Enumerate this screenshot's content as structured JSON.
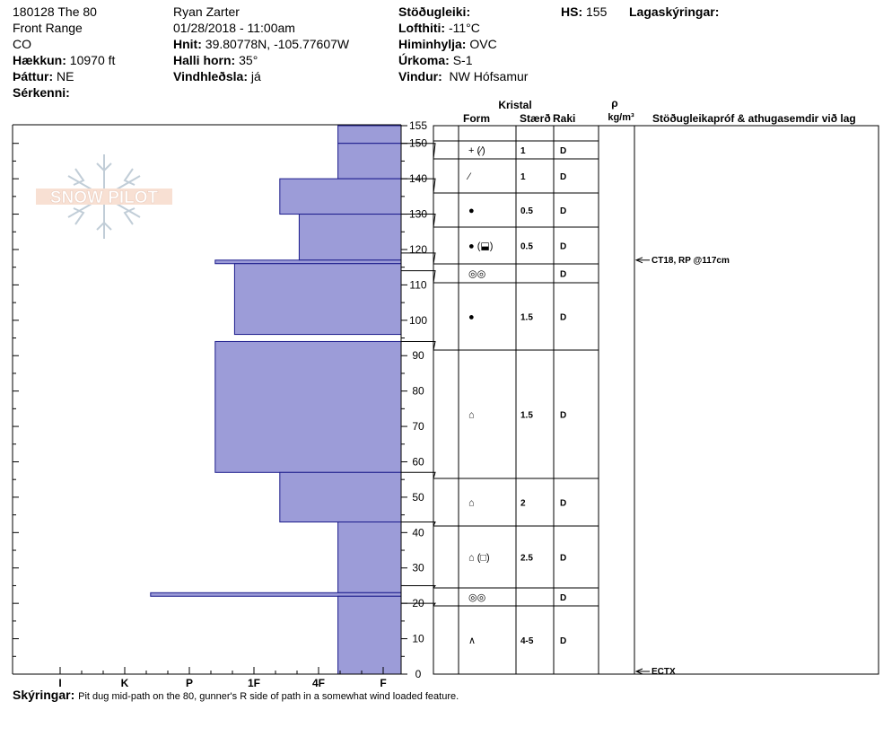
{
  "header": {
    "col1": {
      "site": "180128 The 80",
      "range": "Front Range",
      "state": "CO",
      "elevation_label": "Hækkun:",
      "elevation": "10970 ft",
      "aspect_label": "Þáttur:",
      "aspect": "NE",
      "specifics_label": "Sérkenni:"
    },
    "col2": {
      "observer": "Ryan Zarter",
      "datetime": "01/28/2018 - 11:00am",
      "coords_label": "Hnit:",
      "coords": "39.80778N, -105.77607W",
      "slope_label": "Halli horn:",
      "slope": "35°",
      "windload_label": "Vindhleðsla:",
      "windload": "já"
    },
    "col3": {
      "stability_label": "Stöðugleiki:",
      "airtemp_label": "Lofthiti:",
      "airtemp": "-11°C",
      "sky_label": "Himinhylja:",
      "sky": "OVC",
      "precip_label": "Úrkoma:",
      "precip": "S-1",
      "wind_label": "Vindur:",
      "wind": "NW Hófsamur"
    },
    "hs_label": "HS:",
    "hs": "155",
    "layer_notes_label": "Lagaskýringar:"
  },
  "table_headers": {
    "crystal": "Kristal",
    "form": "Form",
    "size": "Stærð",
    "moisture": "Raki",
    "rho": "ρ",
    "density_unit": "kg/m³",
    "tests": "Stöðugleikapróf & athugasemdir við lag"
  },
  "notes": {
    "label": "Skýringar:",
    "text": "Pit dug mid-path on the 80, gunner's R side of path in a somewhat wind loaded feature."
  },
  "logo": {
    "text": "SNOW PILOT"
  },
  "chart_data": {
    "type": "snow-profile",
    "hardness_scale": [
      "F",
      "4F",
      "1F",
      "P",
      "K",
      "I"
    ],
    "x_tick_labels": [
      "I",
      "K",
      "P",
      "1F",
      "4F",
      "F"
    ],
    "height_axis": {
      "min": 0,
      "max": 155,
      "ticks": [
        0,
        10,
        20,
        30,
        40,
        50,
        60,
        70,
        80,
        90,
        100,
        110,
        120,
        130,
        140,
        150,
        155
      ]
    },
    "hardness_layers": [
      {
        "bottom": 150,
        "top": 155,
        "hardness": 0.7
      },
      {
        "bottom": 140,
        "top": 150,
        "hardness": 0.7
      },
      {
        "bottom": 130,
        "top": 140,
        "hardness": 1.6
      },
      {
        "bottom": 117,
        "top": 130,
        "hardness": 1.3
      },
      {
        "bottom": 116,
        "top": 117,
        "hardness": 2.6
      },
      {
        "bottom": 96,
        "top": 116,
        "hardness": 2.3
      },
      {
        "bottom": 57,
        "top": 94,
        "hardness": 2.6
      },
      {
        "bottom": 43,
        "top": 57,
        "hardness": 1.6
      },
      {
        "bottom": 23,
        "top": 43,
        "hardness": 0.7
      },
      {
        "bottom": 22,
        "top": 23,
        "hardness": 3.6
      },
      {
        "bottom": 0,
        "top": 22,
        "hardness": 0.7
      }
    ],
    "layers": [
      {
        "top": 155,
        "bottom": 150,
        "form": "+ (⁄)",
        "size": "1",
        "moisture": "D"
      },
      {
        "top": 150,
        "bottom": 140,
        "form": "⁄",
        "size": "1",
        "moisture": "D"
      },
      {
        "top": 140,
        "bottom": 130,
        "form": "●",
        "size": "0.5",
        "moisture": "D"
      },
      {
        "top": 130,
        "bottom": 119,
        "form": "● (⬓)",
        "size": "0.5",
        "moisture": "D"
      },
      {
        "top": 119,
        "bottom": 114,
        "form": "◎◎",
        "size": "",
        "moisture": "D"
      },
      {
        "top": 114,
        "bottom": 94,
        "form": "●",
        "size": "1.5",
        "moisture": "D"
      },
      {
        "top": 94,
        "bottom": 57,
        "form": "⌂",
        "size": "1.5",
        "moisture": "D"
      },
      {
        "top": 57,
        "bottom": 43,
        "form": "⌂",
        "size": "2",
        "moisture": "D"
      },
      {
        "top": 43,
        "bottom": 25,
        "form": "⌂ (□)",
        "size": "2.5",
        "moisture": "D"
      },
      {
        "top": 25,
        "bottom": 20,
        "form": "◎◎",
        "size": "",
        "moisture": "D"
      },
      {
        "top": 20,
        "bottom": 0,
        "form": "∧",
        "size": "4-5",
        "moisture": "D"
      }
    ],
    "tests": [
      {
        "height": 117,
        "label": "CT18, RP @117cm"
      },
      {
        "height": 0,
        "label": "ECTX"
      }
    ]
  }
}
